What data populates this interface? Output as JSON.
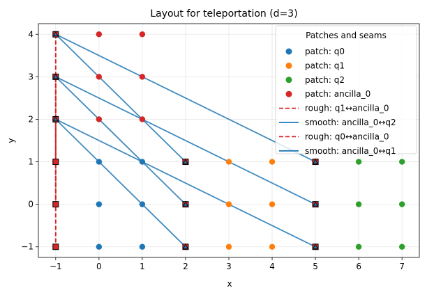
{
  "chart_data": {
    "type": "scatter",
    "title": "Layout for teleportation (d=3)",
    "xlabel": "x",
    "ylabel": "y",
    "xlim": [
      -1.4,
      7.4
    ],
    "ylim": [
      -1.25,
      4.25
    ],
    "xticks": [
      -1,
      0,
      1,
      2,
      3,
      4,
      5,
      6,
      7
    ],
    "yticks": [
      -1,
      0,
      1,
      2,
      3,
      4
    ],
    "xtick_labels": [
      "−1",
      "0",
      "1",
      "2",
      "3",
      "4",
      "5",
      "6",
      "7"
    ],
    "ytick_labels": [
      "−1",
      "0",
      "1",
      "2",
      "3",
      "4"
    ],
    "grid": true,
    "legend_title": "Patches and seams",
    "legend_position": "upper right",
    "series": [
      {
        "name": "patch: q0",
        "kind": "points",
        "color": "#1f77b4",
        "points": [
          [
            0,
            1
          ],
          [
            1,
            1
          ],
          [
            2,
            1
          ],
          [
            0,
            0
          ],
          [
            1,
            0
          ],
          [
            2,
            0
          ],
          [
            0,
            -1
          ],
          [
            1,
            -1
          ],
          [
            2,
            -1
          ]
        ]
      },
      {
        "name": "patch: q1",
        "kind": "points",
        "color": "#ff7f0e",
        "points": [
          [
            3,
            1
          ],
          [
            4,
            1
          ],
          [
            5,
            1
          ],
          [
            3,
            0
          ],
          [
            4,
            0
          ],
          [
            5,
            0
          ],
          [
            3,
            -1
          ],
          [
            4,
            -1
          ],
          [
            5,
            -1
          ]
        ]
      },
      {
        "name": "patch: q2",
        "kind": "points",
        "color": "#2ca02c",
        "points": [
          [
            5,
            1
          ],
          [
            6,
            1
          ],
          [
            7,
            1
          ],
          [
            5,
            0
          ],
          [
            6,
            0
          ],
          [
            7,
            0
          ],
          [
            5,
            -1
          ],
          [
            6,
            -1
          ],
          [
            7,
            -1
          ]
        ]
      },
      {
        "name": "patch: ancilla_0",
        "kind": "points",
        "color": "#d62728",
        "points": [
          [
            -1,
            4
          ],
          [
            0,
            4
          ],
          [
            1,
            4
          ],
          [
            -1,
            3
          ],
          [
            0,
            3
          ],
          [
            1,
            3
          ],
          [
            -1,
            2
          ],
          [
            0,
            2
          ],
          [
            1,
            2
          ]
        ]
      },
      {
        "name": "rough: q1↔ancilla_0",
        "kind": "dashed",
        "color": "#d62728",
        "segments": [
          [
            [
              -1,
              4
            ],
            [
              -1,
              1
            ]
          ],
          [
            [
              -1,
              3
            ],
            [
              -1,
              0
            ]
          ],
          [
            [
              -1,
              2
            ],
            [
              -1,
              -1
            ]
          ]
        ]
      },
      {
        "name": "smooth: ancilla_0↔q2",
        "kind": "solid",
        "color": "#1f77b4",
        "segments": [
          [
            [
              -1,
              4
            ],
            [
              2,
              1
            ]
          ],
          [
            [
              -1,
              3
            ],
            [
              2,
              0
            ]
          ],
          [
            [
              -1,
              2
            ],
            [
              2,
              -1
            ]
          ]
        ]
      },
      {
        "name": "rough: q0↔ancilla_0",
        "kind": "dashed",
        "color": "#d62728",
        "segments": [
          [
            [
              -1,
              4
            ],
            [
              -1,
              1
            ]
          ],
          [
            [
              -1,
              3
            ],
            [
              -1,
              0
            ]
          ],
          [
            [
              -1,
              2
            ],
            [
              -1,
              -1
            ]
          ]
        ]
      },
      {
        "name": "smooth: ancilla_0↔q1",
        "kind": "solid",
        "color": "#1f77b4",
        "segments": [
          [
            [
              -1,
              4
            ],
            [
              5,
              1
            ]
          ],
          [
            [
              -1,
              3
            ],
            [
              5,
              0
            ]
          ],
          [
            [
              -1,
              2
            ],
            [
              5,
              -1
            ]
          ]
        ]
      }
    ],
    "square_markers": [
      [
        -1,
        4
      ],
      [
        -1,
        3
      ],
      [
        -1,
        2
      ],
      [
        -1,
        1
      ],
      [
        -1,
        0
      ],
      [
        -1,
        -1
      ],
      [
        2,
        1
      ],
      [
        2,
        0
      ],
      [
        2,
        -1
      ],
      [
        5,
        1
      ],
      [
        5,
        0
      ],
      [
        5,
        -1
      ]
    ],
    "triangle_markers": [
      [
        -1,
        4
      ],
      [
        -1,
        3
      ],
      [
        -1,
        2
      ],
      [
        2,
        1
      ],
      [
        2,
        0
      ],
      [
        2,
        -1
      ],
      [
        5,
        1
      ],
      [
        5,
        0
      ],
      [
        5,
        -1
      ]
    ]
  }
}
